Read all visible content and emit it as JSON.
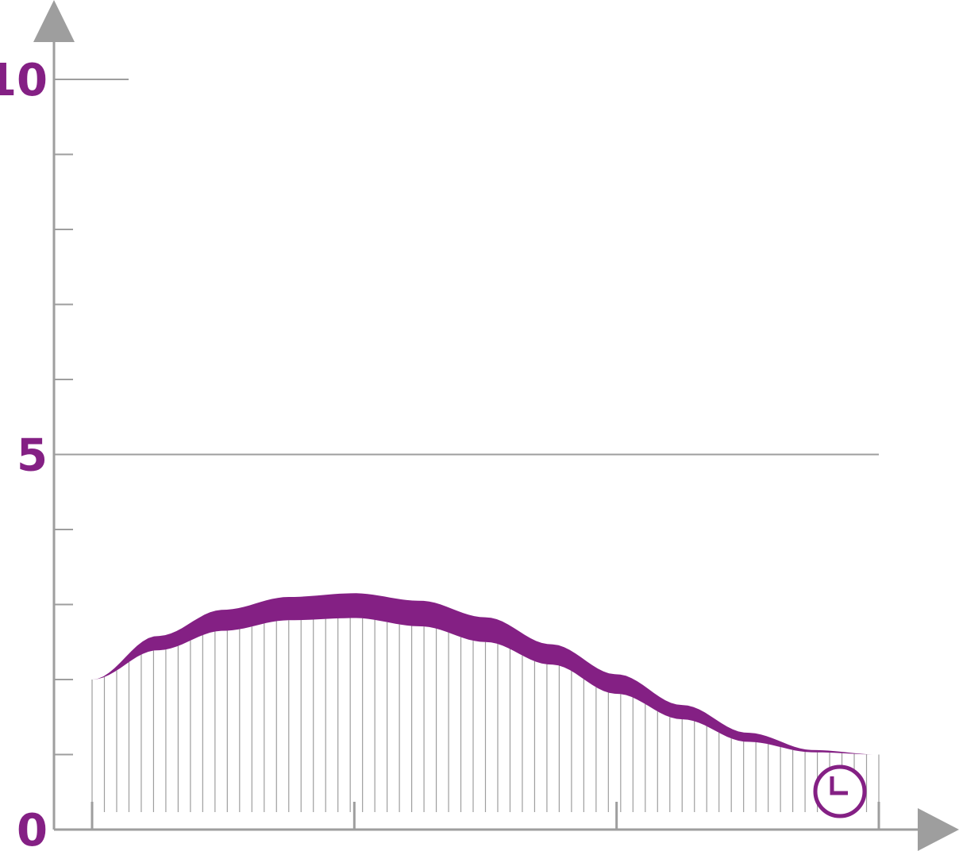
{
  "colors": {
    "axis": "#9e9e9e",
    "accent": "#842084",
    "hatch": "#9e9e9e"
  },
  "icons": {
    "clock": "clock-icon"
  },
  "chart_data": {
    "type": "area",
    "title": "",
    "xlabel": "",
    "ylabel": "",
    "xlim": [
      0,
      3
    ],
    "ylim": [
      0,
      10
    ],
    "y_ticks_major": [
      0,
      5,
      10
    ],
    "y_tick_labels": [
      "0",
      "5",
      "10"
    ],
    "y_ticks_minor": [
      1,
      2,
      3,
      4,
      6,
      7,
      8,
      9
    ],
    "x_ticks": [
      0,
      1,
      2,
      3
    ],
    "reference_lines_y": [
      5,
      10
    ],
    "grid": false,
    "legend": "none",
    "series": [
      {
        "role": "upper-edge",
        "x": [
          0,
          0.25,
          0.5,
          0.75,
          1.0,
          1.25,
          1.5,
          1.75,
          2.0,
          2.25,
          2.5,
          2.75,
          3.0
        ],
        "y": [
          2.0,
          2.58,
          2.93,
          3.1,
          3.15,
          3.05,
          2.83,
          2.47,
          2.07,
          1.66,
          1.29,
          1.06,
          1.0
        ]
      },
      {
        "role": "lower-edge",
        "x": [
          0,
          0.25,
          0.5,
          0.75,
          1.0,
          1.25,
          1.5,
          1.75,
          2.0,
          2.25,
          2.5,
          2.75,
          3.0
        ],
        "y": [
          2.0,
          2.39,
          2.65,
          2.79,
          2.82,
          2.71,
          2.5,
          2.2,
          1.81,
          1.47,
          1.17,
          1.03,
          1.0
        ]
      }
    ]
  }
}
